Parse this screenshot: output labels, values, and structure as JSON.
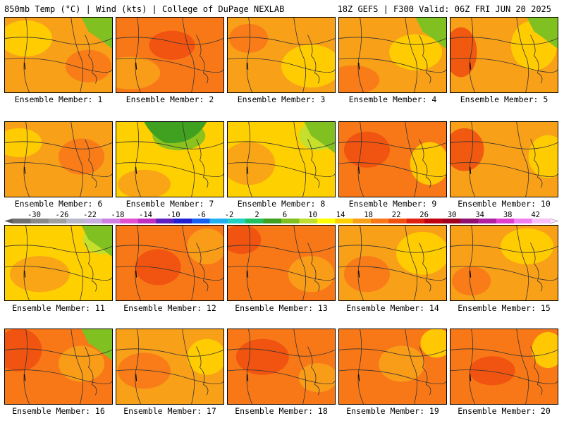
{
  "header": {
    "left": "850mb Temp (°C) | Wind (kts) | College of DuPage NEXLAB",
    "right": "18Z GEFS | F300 Valid: 06Z FRI JUN 20 2025"
  },
  "members": [
    {
      "label": "Ensemble Member: 1",
      "base": "#f8a018",
      "patches": [
        [
          "#ffd000",
          30,
          30,
          60,
          40
        ],
        [
          "#f87818",
          120,
          70,
          50,
          35
        ]
      ],
      "greenCorner": "tr"
    },
    {
      "label": "Ensemble Member: 2",
      "base": "#f87818",
      "patches": [
        [
          "#f8a018",
          20,
          80,
          70,
          35
        ],
        [
          "#f05010",
          80,
          40,
          50,
          30
        ]
      ],
      "greenCorner": ""
    },
    {
      "label": "Ensemble Member: 3",
      "base": "#f8a018",
      "patches": [
        [
          "#ffd000",
          120,
          70,
          70,
          50
        ],
        [
          "#f87818",
          30,
          30,
          40,
          30
        ]
      ],
      "greenCorner": ""
    },
    {
      "label": "Ensemble Member: 4",
      "base": "#f8a018",
      "patches": [
        [
          "#ffd000",
          110,
          50,
          60,
          40
        ],
        [
          "#f87818",
          20,
          90,
          60,
          30
        ]
      ],
      "greenCorner": "tr"
    },
    {
      "label": "Ensemble Member: 5",
      "base": "#f8a018",
      "patches": [
        [
          "#f05010",
          15,
          50,
          30,
          60
        ],
        [
          "#ffd000",
          120,
          40,
          50,
          60
        ]
      ],
      "greenCorner": "tr"
    },
    {
      "label": "Ensemble Member: 6",
      "base": "#f8a018",
      "patches": [
        [
          "#f87818",
          110,
          50,
          50,
          40
        ],
        [
          "#ffd000",
          20,
          30,
          50,
          30
        ]
      ],
      "greenCorner": ""
    },
    {
      "label": "Ensemble Member: 7",
      "base": "#ffd000",
      "patches": [
        [
          "#80c020",
          90,
          20,
          60,
          30
        ],
        [
          "#f8a018",
          40,
          90,
          60,
          30
        ]
      ],
      "greenCorner": "tl"
    },
    {
      "label": "Ensemble Member: 8",
      "base": "#ffd000",
      "patches": [
        [
          "#f8a018",
          30,
          60,
          60,
          50
        ],
        [
          "#c0e030",
          130,
          20,
          40,
          30
        ]
      ],
      "greenCorner": "tr"
    },
    {
      "label": "Ensemble Member: 9",
      "base": "#f87818",
      "patches": [
        [
          "#f05010",
          40,
          40,
          50,
          40
        ],
        [
          "#ffd000",
          130,
          60,
          40,
          50
        ]
      ],
      "greenCorner": ""
    },
    {
      "label": "Ensemble Member: 10",
      "base": "#f8a018",
      "patches": [
        [
          "#f05010",
          20,
          40,
          40,
          50
        ],
        [
          "#ffd000",
          140,
          50,
          40,
          50
        ]
      ],
      "greenCorner": ""
    },
    {
      "label": "Ensemble Member: 11",
      "base": "#ffd000",
      "patches": [
        [
          "#f8a018",
          50,
          70,
          70,
          40
        ],
        [
          "#c0e030",
          140,
          20,
          40,
          30
        ]
      ],
      "greenCorner": "tr"
    },
    {
      "label": "Ensemble Member: 12",
      "base": "#f87818",
      "patches": [
        [
          "#f05010",
          60,
          60,
          50,
          40
        ],
        [
          "#f8a018",
          130,
          30,
          40,
          40
        ]
      ],
      "greenCorner": ""
    },
    {
      "label": "Ensemble Member: 13",
      "base": "#f87818",
      "patches": [
        [
          "#f05010",
          20,
          20,
          40,
          30
        ],
        [
          "#f8a018",
          120,
          70,
          50,
          40
        ]
      ],
      "greenCorner": ""
    },
    {
      "label": "Ensemble Member: 14",
      "base": "#f8a018",
      "patches": [
        [
          "#ffd000",
          120,
          40,
          60,
          50
        ],
        [
          "#f87818",
          40,
          70,
          50,
          40
        ]
      ],
      "greenCorner": ""
    },
    {
      "label": "Ensemble Member: 15",
      "base": "#f8a018",
      "patches": [
        [
          "#ffd000",
          110,
          30,
          60,
          40
        ],
        [
          "#f87818",
          30,
          80,
          40,
          30
        ]
      ],
      "greenCorner": ""
    },
    {
      "label": "Ensemble Member: 16",
      "base": "#f87818",
      "patches": [
        [
          "#f05010",
          20,
          30,
          50,
          50
        ],
        [
          "#f8a018",
          110,
          50,
          50,
          40
        ]
      ],
      "greenCorner": "tr"
    },
    {
      "label": "Ensemble Member: 17",
      "base": "#f8a018",
      "patches": [
        [
          "#f87818",
          40,
          60,
          60,
          40
        ],
        [
          "#ffd000",
          130,
          40,
          40,
          40
        ]
      ],
      "greenCorner": ""
    },
    {
      "label": "Ensemble Member: 18",
      "base": "#f87818",
      "patches": [
        [
          "#f05010",
          50,
          40,
          60,
          40
        ],
        [
          "#f8a018",
          130,
          70,
          40,
          30
        ]
      ],
      "greenCorner": ""
    },
    {
      "label": "Ensemble Member: 19",
      "base": "#f87818",
      "patches": [
        [
          "#f8a018",
          90,
          50,
          50,
          40
        ],
        [
          "#ffd000",
          140,
          20,
          30,
          30
        ]
      ],
      "greenCorner": ""
    },
    {
      "label": "Ensemble Member: 20",
      "base": "#f87818",
      "patches": [
        [
          "#f05010",
          60,
          60,
          50,
          30
        ],
        [
          "#ffd000",
          140,
          30,
          30,
          40
        ]
      ],
      "greenCorner": ""
    }
  ],
  "colorbar": {
    "ticks": [
      "-30",
      "-26",
      "-22",
      "-18",
      "-14",
      "-10",
      "-6",
      "-2",
      "2",
      "6",
      "10",
      "14",
      "18",
      "22",
      "26",
      "30",
      "34",
      "38",
      "42"
    ],
    "colors": [
      "#707070",
      "#8a8a8a",
      "#a0a0a0",
      "#b8b8c8",
      "#c8b0e0",
      "#d080e0",
      "#e050d0",
      "#c030c0",
      "#6020c0",
      "#2020d0",
      "#1860f0",
      "#20b0f0",
      "#20d0c0",
      "#20c060",
      "#40a020",
      "#80c020",
      "#c0e030",
      "#ffff00",
      "#ffd000",
      "#f8a018",
      "#f87818",
      "#f05010",
      "#e02010",
      "#c00010",
      "#a00020",
      "#901070",
      "#b020a0",
      "#e040d0",
      "#f080f0",
      "#f8c0f8"
    ]
  }
}
